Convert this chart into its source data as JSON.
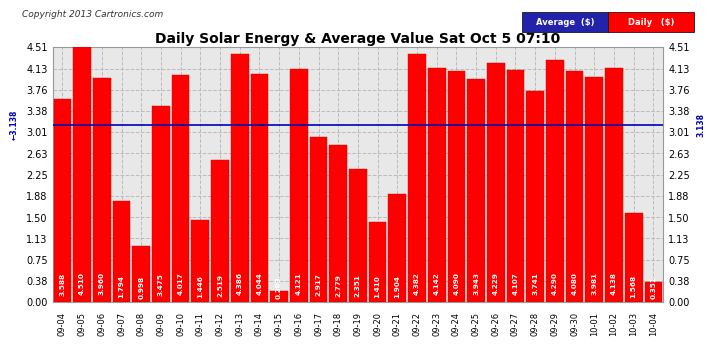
{
  "title": "Daily Solar Energy & Average Value Sat Oct 5 07:10",
  "copyright": "Copyright 2013 Cartronics.com",
  "average_value": 3.138,
  "bar_color": "#FF0000",
  "average_line_color": "#0000BB",
  "categories": [
    "09-04",
    "09-05",
    "09-06",
    "09-07",
    "09-08",
    "09-09",
    "09-10",
    "09-11",
    "09-12",
    "09-13",
    "09-14",
    "09-15",
    "09-16",
    "09-17",
    "09-18",
    "09-19",
    "09-20",
    "09-21",
    "09-22",
    "09-23",
    "09-24",
    "09-25",
    "09-26",
    "09-27",
    "09-28",
    "09-29",
    "09-30",
    "10-01",
    "10-02",
    "10-03",
    "10-04"
  ],
  "values": [
    3.588,
    4.51,
    3.96,
    1.794,
    0.998,
    3.475,
    4.017,
    1.446,
    2.519,
    4.386,
    4.044,
    0.203,
    4.121,
    2.917,
    2.779,
    2.351,
    1.41,
    1.904,
    4.382,
    4.142,
    4.09,
    3.943,
    4.229,
    4.107,
    3.741,
    4.29,
    4.08,
    3.981,
    4.138,
    1.568,
    0.351
  ],
  "ylim": [
    0,
    4.51
  ],
  "yticks": [
    0.0,
    0.38,
    0.75,
    1.13,
    1.5,
    1.88,
    2.25,
    2.63,
    3.01,
    3.38,
    3.76,
    4.13,
    4.51
  ],
  "background_color": "#FFFFFF",
  "plot_bg_color": "#E8E8E8",
  "grid_color": "#BBBBBB",
  "value_text_color": "#FFFFFF",
  "value_fontsize": 5.2,
  "bar_edge_color": "#CC0000",
  "legend_avg_color": "#2222AA",
  "legend_daily_color": "#FF0000"
}
